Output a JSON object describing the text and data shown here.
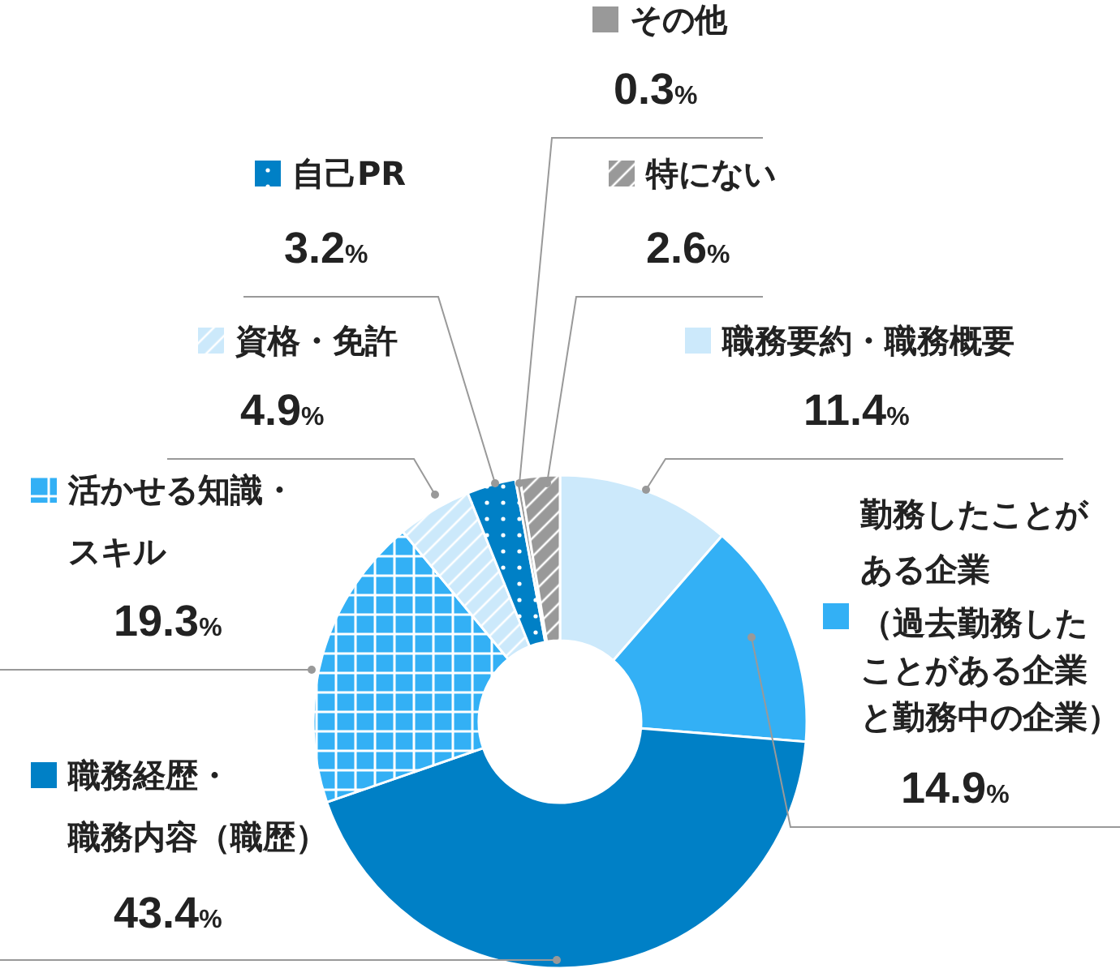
{
  "chart_data": {
    "type": "donut",
    "legend": "top",
    "categories": [
      "職務要約・職務概要",
      "勤務したことがある企業（過去勤務したことがある企業と勤務中の企業）",
      "職務経歴・職務内容（職歴）",
      "活かせる知識・スキル",
      "資格・免許",
      "自己PR",
      "その他",
      "特にない"
    ],
    "values": [
      11.4,
      14.9,
      43.4,
      19.3,
      4.9,
      3.2,
      0.3,
      2.6
    ],
    "value_labels": [
      "11.4%",
      "14.9%",
      "43.4%",
      "19.3%",
      "4.9%",
      "3.2%",
      "0.3%",
      "2.6%"
    ],
    "colors": [
      "#cce9fb",
      "#33b0f5",
      "#0080c6",
      "#33b0f5",
      "#cce9fb",
      "#0080c6",
      "#999999",
      "#999999"
    ]
  }
}
